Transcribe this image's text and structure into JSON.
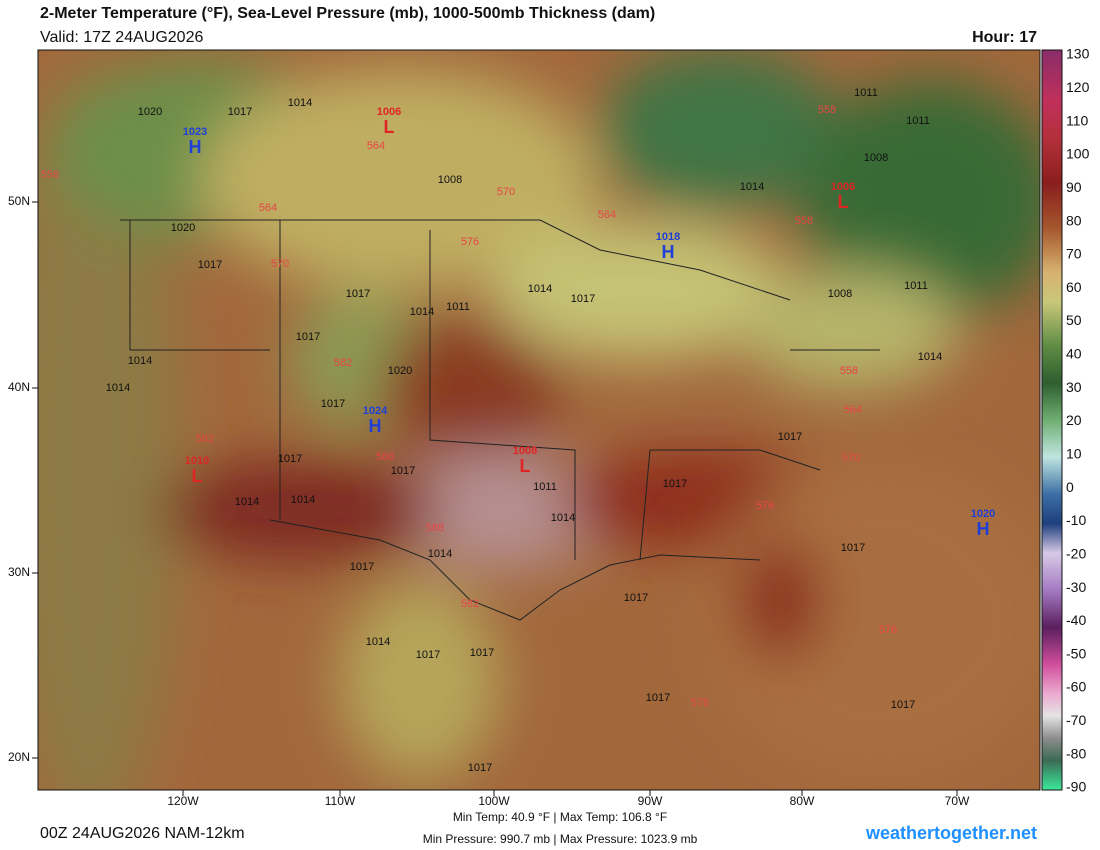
{
  "header": {
    "title": "2-Meter Temperature (°F), Sea-Level Pressure (mb), 1000-500mb Thickness (dam)",
    "valid": "Valid: 17Z 24AUG2026",
    "hour": "Hour: 17"
  },
  "colorbar": {
    "ticks": [
      130,
      120,
      110,
      100,
      90,
      80,
      70,
      60,
      50,
      40,
      30,
      20,
      10,
      0,
      -10,
      -20,
      -30,
      -40,
      -50,
      -60,
      -70,
      -80,
      -90
    ]
  },
  "latitude_labels": [
    "50N",
    "40N",
    "30N",
    "20N"
  ],
  "longitude_labels": [
    "120W",
    "110W",
    "100W",
    "90W",
    "80W",
    "70W"
  ],
  "isobar_labels": [
    1020,
    1017,
    1014,
    1008,
    1020,
    1017,
    1017,
    1017,
    1014,
    1011,
    1014,
    1017,
    1014,
    1014,
    1020,
    1017,
    1017,
    1017,
    1014,
    1014,
    1011,
    1014,
    1014,
    1017,
    1017,
    1017,
    1017,
    1017,
    1014,
    1017,
    1017,
    1017,
    1017,
    1017,
    1011,
    1011,
    1008,
    1014,
    1008,
    1011,
    1014
  ],
  "thickness_labels": [
    558,
    564,
    564,
    570,
    564,
    570,
    576,
    558,
    558,
    558,
    564,
    570,
    582,
    582,
    588,
    588,
    582,
    576,
    576,
    576
  ],
  "pressure_centers": [
    {
      "letter": "H",
      "value": 1023
    },
    {
      "letter": "L",
      "value": 1006
    },
    {
      "letter": "H",
      "value": 1024
    },
    {
      "letter": "L",
      "value": 1010
    },
    {
      "letter": "L",
      "value": 1008
    },
    {
      "letter": "H",
      "value": 1018
    },
    {
      "letter": "L",
      "value": 1006
    },
    {
      "letter": "H",
      "value": 1020
    }
  ],
  "footer": {
    "run": "00Z 24AUG2026 NAM-12km",
    "temperature_range": "Min Temp: 40.9 °F | Max Temp: 106.8 °F",
    "pressure_range": "Min Pressure: 990.7 mb | Max Pressure: 1023.9 mb",
    "site": "weathertogether.net"
  }
}
